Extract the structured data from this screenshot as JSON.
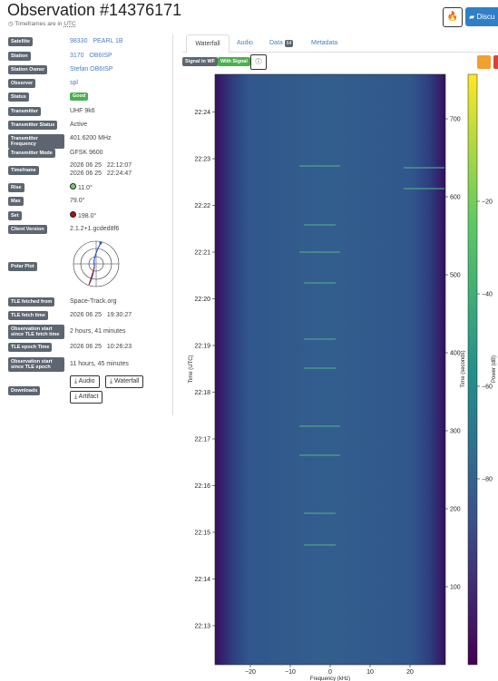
{
  "header": {
    "title": "Observation #14376171",
    "subtitle_prefix": "Timeframes are in",
    "subtitle_link": "UTC",
    "discuss": "Discu"
  },
  "details": {
    "satellite": {
      "label": "Satellite",
      "id": "98330",
      "name": "PEARL 1B"
    },
    "station": {
      "label": "Station",
      "id": "3170",
      "name": "OB6ISP"
    },
    "owner": {
      "label": "Station Owner",
      "value": "Stefan OB6ISP"
    },
    "observer": {
      "label": "Observer",
      "value": "spl"
    },
    "status": {
      "label": "Status",
      "value": "Good"
    },
    "transmitter": {
      "label": "Transmitter",
      "value": "UHF 9k6"
    },
    "tx_status": {
      "label": "Transmitter Status",
      "value": "Active"
    },
    "tx_freq": {
      "label": "Transmitter Frequency",
      "value": "401.6200 MHz"
    },
    "tx_mode": {
      "label": "Transmitter Mode",
      "value": "GFSK 9600"
    },
    "timeframe": {
      "label": "Timeframe",
      "start": "2026 06 25   22:12:07",
      "end": "2026 06 25   22:24:47"
    },
    "rise": {
      "label": "Rise",
      "value": "11.0°"
    },
    "max": {
      "label": "Max",
      "value": "79.0°"
    },
    "set": {
      "label": "Set",
      "value": "198.0°"
    },
    "client": {
      "label": "Client Version",
      "value": "2.1.2+1.gcded8f6"
    },
    "polar": {
      "label": "Polar Plot"
    },
    "tle_from": {
      "label": "TLE fetched from",
      "value": "Space-Track.org"
    },
    "tle_time": {
      "label": "TLE fetch time",
      "value": "2026 06 25   19:30:27"
    },
    "since_fetch": {
      "label": "Observation start since TLE fetch time",
      "value": "2 hours, 41 minutes"
    },
    "epoch": {
      "label": "TLE epoch Time",
      "value": "2026 06 25   10:26:23"
    },
    "since_epoch": {
      "label": "Observation start since TLE epoch",
      "value": "11 hours, 45 minutes"
    },
    "downloads": {
      "label": "Downloads",
      "buttons": [
        "Audio",
        "Waterfall",
        "Artifact"
      ]
    }
  },
  "tabs": {
    "items": [
      "Waterfall",
      "Audio",
      "Data",
      "Metadata"
    ],
    "data_count": "64"
  },
  "badges": [
    "Signal in WF",
    "With Signal"
  ],
  "waterfall": {
    "time_utc": [
      "22:13",
      "22:14",
      "22:15",
      "22:16",
      "22:17",
      "22:18",
      "22:19",
      "22:20",
      "22:21",
      "22:22",
      "22:23",
      "22:24"
    ],
    "seconds": [
      100,
      200,
      300,
      400,
      500,
      600,
      700
    ],
    "freq": [
      {
        "value": -20,
        "label": "−20"
      },
      {
        "value": -10,
        "label": "−10"
      },
      0,
      10,
      20
    ],
    "power": [
      {
        "value": -20,
        "label": "−20"
      },
      {
        "value": -40,
        "label": "−40"
      },
      {
        "value": -60,
        "label": "−60"
      },
      {
        "value": -80,
        "label": "−80"
      }
    ],
    "x_label": "Frequency (kHz)",
    "y_label": "Time (UTC)",
    "y2_label": "Time (seconds)",
    "cbar_label": "Power (dB)"
  }
}
